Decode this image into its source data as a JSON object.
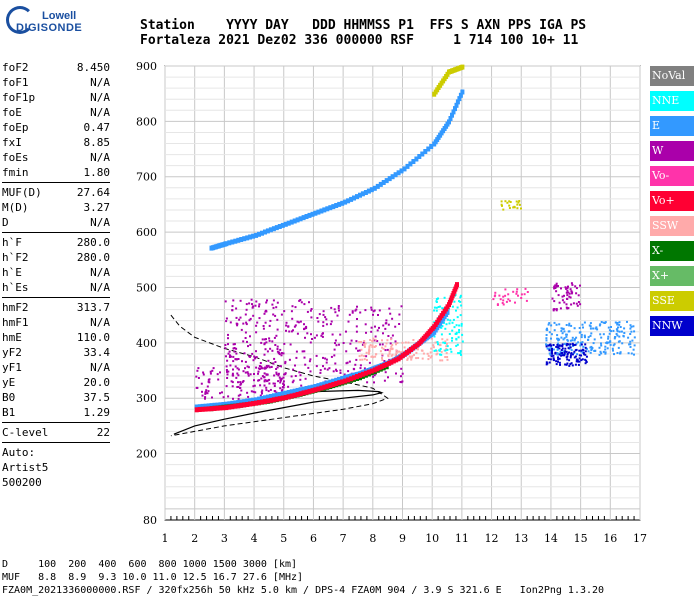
{
  "logo": {
    "line1": "Lowell",
    "line2": "DIGISONDE"
  },
  "header": {
    "line1": "Station    YYYY DAY   DDD HHMMSS P1  FFS S AXN PPS IGA PS",
    "line2": "Fortaleza 2021 Dez02 336 000000 RSF     1 714 100 10+ 11"
  },
  "params": {
    "group1": [
      {
        "label": "foF2",
        "value": "8.450"
      },
      {
        "label": "foF1",
        "value": "N/A"
      },
      {
        "label": "foF1p",
        "value": "N/A"
      },
      {
        "label": "foE",
        "value": "N/A"
      },
      {
        "label": "foEp",
        "value": "0.47"
      },
      {
        "label": "fxI",
        "value": "8.85"
      },
      {
        "label": "foEs",
        "value": "N/A"
      },
      {
        "label": "fmin",
        "value": "1.80"
      }
    ],
    "group2": [
      {
        "label": "MUF(D)",
        "value": "27.64"
      },
      {
        "label": "M(D)",
        "value": "3.27"
      },
      {
        "label": "D",
        "value": "N/A"
      }
    ],
    "group3": [
      {
        "label": "h`F",
        "value": "280.0"
      },
      {
        "label": "h`F2",
        "value": "280.0"
      },
      {
        "label": "h`E",
        "value": "N/A"
      },
      {
        "label": "h`Es",
        "value": "N/A"
      }
    ],
    "group4": [
      {
        "label": "hmF2",
        "value": "313.7"
      },
      {
        "label": "hmF1",
        "value": "N/A"
      },
      {
        "label": "hmE",
        "value": "110.0"
      },
      {
        "label": "yF2",
        "value": "33.4"
      },
      {
        "label": "yF1",
        "value": "N/A"
      },
      {
        "label": "yE",
        "value": "20.0"
      },
      {
        "label": "B0",
        "value": "37.5"
      },
      {
        "label": "B1",
        "value": "1.29"
      }
    ],
    "group5": [
      {
        "label": "C-level",
        "value": "22"
      }
    ],
    "auto_lines": [
      "Auto:",
      "Artist5",
      "500200"
    ]
  },
  "legend": [
    {
      "label": "NoVal",
      "color": "#808080"
    },
    {
      "label": "NNE",
      "color": "#00ffff"
    },
    {
      "label": "E",
      "color": "#3399ff"
    },
    {
      "label": "W",
      "color": "#aa00aa"
    },
    {
      "label": "Vo-",
      "color": "#ff33aa"
    },
    {
      "label": "Vo+",
      "color": "#ff0033"
    },
    {
      "label": "SSW",
      "color": "#ffaaaa"
    },
    {
      "label": "X-",
      "color": "#007700"
    },
    {
      "label": "X+",
      "color": "#66bb66"
    },
    {
      "label": "SSE",
      "color": "#cccc00"
    },
    {
      "label": "NNW",
      "color": "#0000cc"
    }
  ],
  "chart_data": {
    "type": "scatter",
    "xlabel": "",
    "ylabel": "",
    "xlim": [
      1,
      17
    ],
    "ylim": [
      80,
      900
    ],
    "x_ticks": [
      "1",
      "2",
      "3",
      "4",
      "5",
      "6",
      "7",
      "8",
      "9",
      "10",
      "11",
      "12",
      "13",
      "14",
      "15",
      "16",
      "17"
    ],
    "y_ticks": [
      "80",
      "200",
      "300",
      "400",
      "500",
      "600",
      "700",
      "800",
      "900"
    ],
    "traces": [
      {
        "name": "F2 O-trace",
        "color": "#3399ff",
        "points": [
          [
            2,
            285
          ],
          [
            3,
            290
          ],
          [
            4,
            298
          ],
          [
            5,
            310
          ],
          [
            6,
            322
          ],
          [
            7,
            338
          ],
          [
            7.5,
            345
          ],
          [
            8,
            355
          ],
          [
            8.5,
            365
          ],
          [
            9,
            380
          ],
          [
            9.5,
            400
          ],
          [
            10,
            420
          ],
          [
            10.5,
            460
          ]
        ]
      },
      {
        "name": "F2 X-trace",
        "color": "#007700",
        "points": [
          [
            2.5,
            282
          ],
          [
            3.5,
            288
          ],
          [
            4.5,
            296
          ],
          [
            5.5,
            308
          ],
          [
            6.5,
            322
          ],
          [
            7.5,
            338
          ],
          [
            8.5,
            360
          ]
        ]
      },
      {
        "name": "Vo+ trace",
        "color": "#ff0033",
        "points": [
          [
            2,
            280
          ],
          [
            3,
            284
          ],
          [
            4,
            292
          ],
          [
            5,
            302
          ],
          [
            6,
            316
          ],
          [
            7,
            332
          ],
          [
            8,
            352
          ],
          [
            8.8,
            372
          ],
          [
            9.5,
            400
          ],
          [
            10,
            430
          ],
          [
            10.5,
            470
          ],
          [
            10.8,
            510
          ]
        ]
      },
      {
        "name": "second hop",
        "color": "#3399ff",
        "points": [
          [
            2.5,
            572
          ],
          [
            3,
            580
          ],
          [
            4,
            595
          ],
          [
            5,
            615
          ],
          [
            6,
            635
          ],
          [
            7,
            655
          ],
          [
            8,
            680
          ],
          [
            9,
            715
          ],
          [
            10,
            760
          ],
          [
            10.5,
            800
          ],
          [
            11,
            860
          ]
        ]
      },
      {
        "name": "SSE upper",
        "color": "#cccc00",
        "points": [
          [
            10,
            850
          ],
          [
            10.5,
            890
          ],
          [
            11,
            900
          ]
        ]
      }
    ],
    "profile_curves": {
      "dashed": [
        [
          1.2,
          450
        ],
        [
          1.5,
          430
        ],
        [
          2,
          410
        ],
        [
          3,
          390
        ],
        [
          4,
          375
        ],
        [
          5,
          355
        ],
        [
          6,
          340
        ],
        [
          7,
          330
        ],
        [
          8,
          318
        ],
        [
          8.5,
          300
        ],
        [
          8,
          290
        ],
        [
          7,
          280
        ],
        [
          5,
          265
        ],
        [
          3,
          250
        ],
        [
          1.2,
          232
        ]
      ],
      "solid": [
        [
          1.3,
          235
        ],
        [
          2,
          250
        ],
        [
          3,
          262
        ],
        [
          4,
          273
        ],
        [
          5,
          283
        ],
        [
          6,
          293
        ],
        [
          7,
          300
        ],
        [
          8,
          306
        ],
        [
          8.3,
          310
        ],
        [
          8.2,
          312
        ],
        [
          7.5,
          314
        ],
        [
          6,
          312
        ]
      ]
    }
  },
  "footer": {
    "line1": "D     100  200  400  600  800 1000 1500 3000 [km]",
    "line2": "MUF   8.8  8.9  9.3 10.0 11.0 12.5 16.7 27.6 [MHz]",
    "line3": "FZA0M_2021336000000.RSF / 320fx256h 50 kHz 5.0 km / DPS-4 FZA0M 904 / 3.9 S 321.6 E   Ion2Png 1.3.20"
  }
}
